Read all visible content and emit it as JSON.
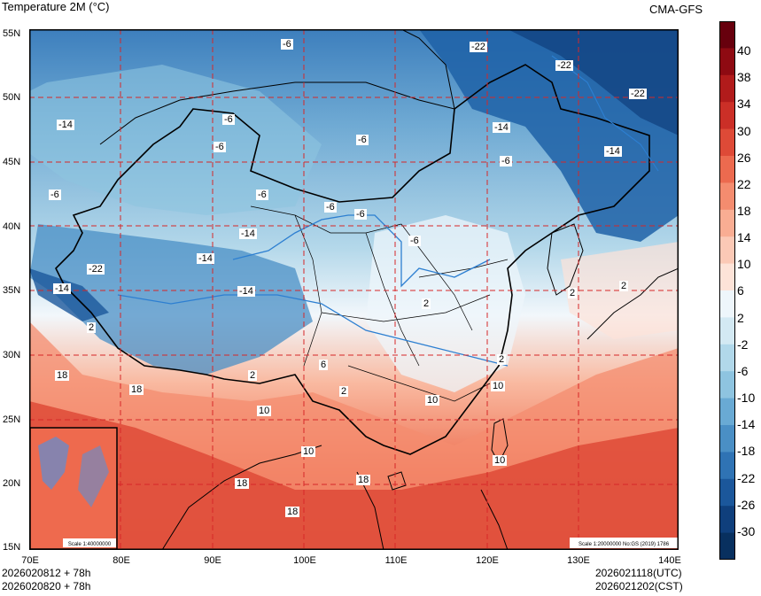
{
  "header": {
    "title": "Temperature  2M (°C)",
    "source": "CMA-GFS"
  },
  "footer": {
    "left_line1": "2026020812 + 78h",
    "left_line2": "2026020820 + 78h",
    "right_line1": "2026021118(UTC)",
    "right_line2": "2026021202(CST)"
  },
  "axes": {
    "lat_labels": [
      "55N",
      "50N",
      "45N",
      "40N",
      "35N",
      "30N",
      "25N",
      "20N",
      "15N"
    ],
    "lon_labels": [
      "70E",
      "80E",
      "90E",
      "100E",
      "110E",
      "120E",
      "130E",
      "140E"
    ]
  },
  "map": {
    "inset_scale": "Scale 1:40000000",
    "main_scale": "Scale 1:20000000 No:GS (2019) 1786",
    "contour_labels": [
      "-6",
      "-22",
      "-22",
      "-22",
      "-14",
      "-6",
      "-6",
      "-14",
      "-6",
      "-14",
      "-6",
      "-6",
      "-6",
      "-6",
      "-6",
      "-14",
      "-6",
      "-14",
      "-14",
      "-22",
      "-14",
      "2",
      "18",
      "18",
      "2",
      "2",
      "10",
      "10",
      "6",
      "2",
      "10",
      "18",
      "18",
      "10",
      "18",
      "2",
      "2",
      "10",
      "2"
    ]
  },
  "colorbar": {
    "labels": [
      "40",
      "38",
      "34",
      "30",
      "26",
      "22",
      "18",
      "14",
      "10",
      "6",
      "2",
      "-2",
      "-6",
      "-10",
      "-14",
      "-18",
      "-22",
      "-26",
      "-30"
    ],
    "colors": [
      "#67000d",
      "#8e0a12",
      "#b11b1b",
      "#cb2f27",
      "#de4a37",
      "#ec6a4f",
      "#f48c6f",
      "#f9ad93",
      "#fbc9b6",
      "#fde3d8",
      "#eef6fb",
      "#d3e9f3",
      "#b1d8ea",
      "#8ec4e0",
      "#69aad4",
      "#4a8fc5",
      "#2f73b4",
      "#1b579b",
      "#0f3f7c",
      "#08305f"
    ]
  }
}
